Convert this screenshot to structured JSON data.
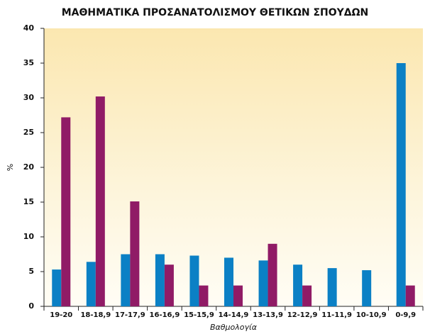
{
  "chart_data": {
    "type": "bar",
    "title": "ΜΑΘΗΜΑΤΙΚΑ ΠΡΟΣΑΝΑΤΟΛΙΣΜΟΥ ΘΕΤΙΚΩΝ ΣΠΟΥΔΩΝ",
    "y_label": "%",
    "x_label": "Βαθμολογία",
    "categories": [
      "19-20",
      "18-18,9",
      "17-17,9",
      "16-16,9",
      "15-15,9",
      "14-14,9",
      "13-13,9",
      "12-12,9",
      "11-11,9",
      "10-10,9",
      "0-9,9"
    ],
    "series": [
      {
        "color": "#0b80c5",
        "values": [
          5.3,
          6.4,
          7.5,
          7.5,
          7.3,
          7.0,
          6.6,
          6.0,
          5.5,
          5.2,
          35
        ]
      },
      {
        "color": "#901b66",
        "values": [
          27.2,
          30.2,
          15.1,
          6.0,
          3.0,
          3.0,
          9.0,
          3.0,
          0,
          0,
          3.0
        ]
      }
    ],
    "ylim": [
      0,
      40
    ],
    "yticks": [
      0,
      5,
      10,
      15,
      20,
      25,
      30,
      35,
      40
    ],
    "grid": false
  }
}
